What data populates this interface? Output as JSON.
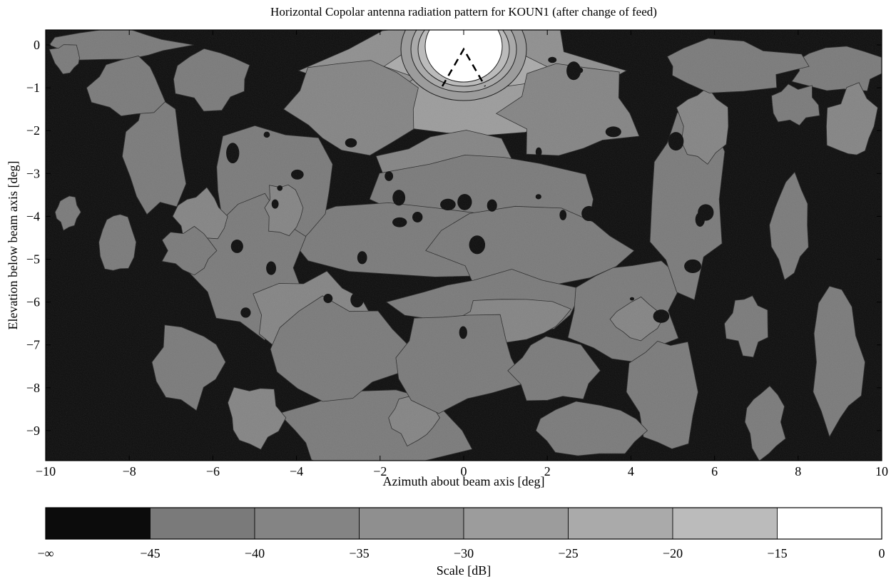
{
  "chart_data": {
    "type": "heatmap",
    "title": "Horizontal Copolar antenna radiation pattern for KOUN1 (after change of feed)",
    "xlabel": "Azimuth about beam axis [deg]",
    "ylabel": "Elevation below beam axis [deg]",
    "xlim": [
      -10,
      10
    ],
    "ylim": [
      -9.7,
      0.35
    ],
    "xticks": [
      "-10",
      "-8",
      "-6",
      "-4",
      "-2",
      "0",
      "2",
      "4",
      "6",
      "8",
      "10"
    ],
    "yticks": [
      "0",
      "-1",
      "-2",
      "-3",
      "-4",
      "-5",
      "-6",
      "-7",
      "-8",
      "-9"
    ],
    "colorbar": {
      "label": "Scale [dB]",
      "ticks": [
        "−∞",
        "-45",
        "-40",
        "-35",
        "-30",
        "-25",
        "-20",
        "-15",
        "0"
      ],
      "levels": [
        {
          "from": "-inf",
          "to": -45,
          "color": "#0c0c0c"
        },
        {
          "from": -45,
          "to": -40,
          "color": "#7a7a7a"
        },
        {
          "from": -40,
          "to": -35,
          "color": "#848484"
        },
        {
          "from": -35,
          "to": -30,
          "color": "#8f8f8f"
        },
        {
          "from": -30,
          "to": -25,
          "color": "#9c9c9c"
        },
        {
          "from": -25,
          "to": -20,
          "color": "#aaaaaa"
        },
        {
          "from": -20,
          "to": -15,
          "color": "#bbbbbb"
        },
        {
          "from": -15,
          "to": 0,
          "color": "#ffffff"
        }
      ]
    },
    "beam_peak": {
      "azimuth": 0,
      "elevation": 0,
      "level_db": 0
    },
    "grid": false,
    "legend": "colorbar-bottom"
  }
}
